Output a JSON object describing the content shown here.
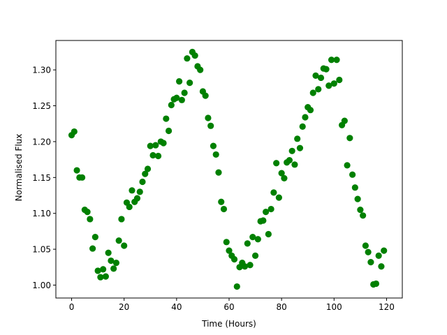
{
  "chart_data": {
    "type": "scatter",
    "title": "",
    "xlabel": "Time (Hours)",
    "ylabel": "Normalised Flux",
    "xlim": [
      -6,
      126
    ],
    "ylim": [
      0.982,
      1.341
    ],
    "xticks": [
      0,
      20,
      40,
      60,
      80,
      100,
      120
    ],
    "yticks": [
      1.0,
      1.05,
      1.1,
      1.15,
      1.2,
      1.25,
      1.3
    ],
    "xtick_labels": [
      "0",
      "20",
      "40",
      "60",
      "80",
      "100",
      "120"
    ],
    "ytick_labels": [
      "1.00",
      "1.05",
      "1.10",
      "1.15",
      "1.20",
      "1.25",
      "1.30"
    ],
    "grid": false,
    "legend": "none",
    "series": [
      {
        "color": "#008000",
        "x": [
          0,
          1,
          2,
          3,
          4,
          5,
          6,
          7,
          8,
          9,
          10,
          11,
          12,
          13,
          14,
          15,
          16,
          17,
          18,
          19,
          20,
          21,
          22,
          23,
          24,
          25,
          26,
          27,
          28,
          29,
          30,
          31,
          32,
          33,
          34,
          35,
          36,
          37,
          38,
          39,
          40,
          41,
          42,
          43,
          44,
          45,
          46,
          47,
          48,
          49,
          50,
          51,
          52,
          53,
          54,
          55,
          56,
          57,
          58,
          59,
          60,
          61,
          62,
          63,
          64,
          65,
          66,
          67,
          68,
          69,
          70,
          71,
          72,
          73,
          74,
          75,
          76,
          77,
          78,
          79,
          80,
          81,
          82,
          83,
          84,
          85,
          86,
          87,
          88,
          89,
          90,
          91,
          92,
          93,
          94,
          95,
          96,
          97,
          98,
          99,
          100,
          101,
          102,
          103,
          104,
          105,
          106,
          107,
          108,
          109,
          110,
          111,
          112,
          113,
          114,
          115,
          116,
          117,
          118,
          119
        ],
        "y": [
          1.209,
          1.214,
          1.16,
          1.15,
          1.15,
          1.105,
          1.102,
          1.092,
          1.051,
          1.067,
          1.02,
          1.011,
          1.022,
          1.012,
          1.045,
          1.034,
          1.023,
          1.031,
          1.062,
          1.092,
          1.055,
          1.115,
          1.109,
          1.132,
          1.116,
          1.121,
          1.13,
          1.144,
          1.155,
          1.162,
          1.194,
          1.181,
          1.195,
          1.18,
          1.2,
          1.198,
          1.232,
          1.215,
          1.251,
          1.259,
          1.261,
          1.284,
          1.258,
          1.268,
          1.316,
          1.282,
          1.325,
          1.32,
          1.305,
          1.3,
          1.27,
          1.264,
          1.233,
          1.222,
          1.194,
          1.182,
          1.157,
          1.116,
          1.106,
          1.06,
          1.048,
          1.041,
          1.036,
          0.998,
          1.025,
          1.031,
          1.026,
          1.058,
          1.028,
          1.067,
          1.041,
          1.064,
          1.089,
          1.09,
          1.102,
          1.071,
          1.106,
          1.129,
          1.17,
          1.122,
          1.156,
          1.149,
          1.171,
          1.174,
          1.187,
          1.168,
          1.204,
          1.191,
          1.221,
          1.234,
          1.248,
          1.244,
          1.268,
          1.292,
          1.273,
          1.289,
          1.302,
          1.301,
          1.278,
          1.314,
          1.281,
          1.314,
          1.286,
          1.223,
          1.229,
          1.167,
          1.205,
          1.154,
          1.136,
          1.12,
          1.105,
          1.097,
          1.055,
          1.046,
          1.032,
          1.001,
          1.002,
          1.041,
          1.026,
          1.048
        ]
      }
    ]
  }
}
